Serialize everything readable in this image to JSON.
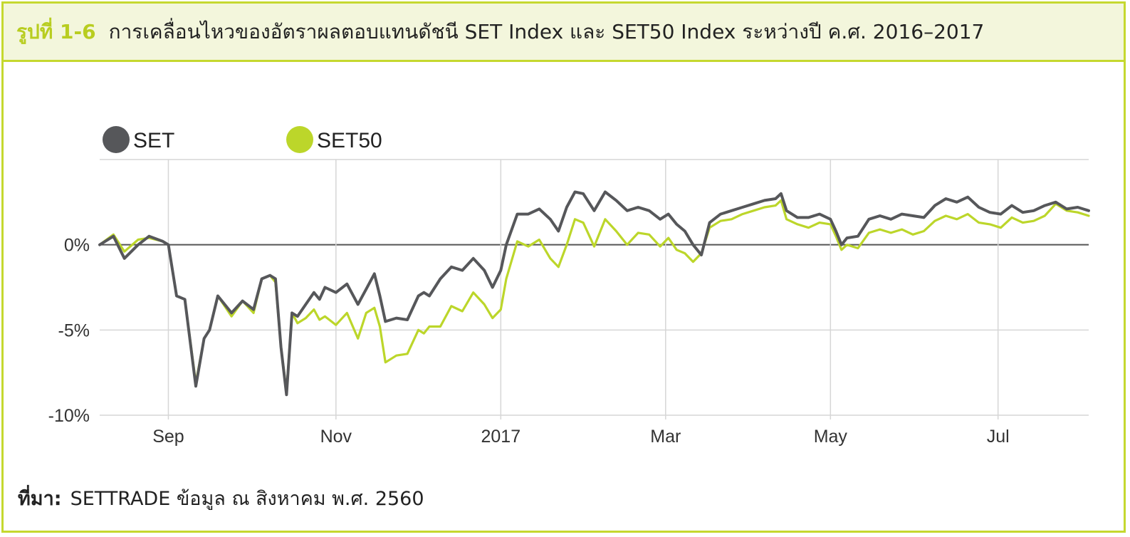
{
  "figure": {
    "number": "รูปที่ 1-6",
    "title": "การเคลื่อนไหวของอัตราผลตอบแทนดัชนี SET Index และ SET50 Index ระหว่างปี ค.ศ. 2016–2017"
  },
  "source": {
    "label": "ที่มา:",
    "text": "SETTRADE ข้อมูล ณ สิงหาคม พ.ศ. 2560"
  },
  "colors": {
    "set": "#56575a",
    "set50": "#bcd62a",
    "frame": "#c5d82f",
    "grid": "#d6d6d6",
    "zero": "#555555"
  },
  "chart_data": {
    "type": "line",
    "title": "",
    "xlabel": "",
    "ylabel": "",
    "ylim": [
      -10,
      5
    ],
    "xlim": [
      0,
      360
    ],
    "grid": true,
    "legend_position": "top-left",
    "yticks": [
      {
        "value": 0,
        "label": "0%"
      },
      {
        "value": -5,
        "label": "-5%"
      },
      {
        "value": -10,
        "label": "-10%"
      }
    ],
    "xticks": [
      {
        "value": 25,
        "label": "Sep"
      },
      {
        "value": 86,
        "label": "Nov"
      },
      {
        "value": 146,
        "label": "2017"
      },
      {
        "value": 206,
        "label": "Mar"
      },
      {
        "value": 266,
        "label": "May"
      },
      {
        "value": 327,
        "label": "Jul"
      }
    ],
    "series": [
      {
        "name": "SET",
        "x": [
          0,
          5,
          9,
          14,
          18,
          23,
          25,
          28,
          31,
          35,
          38,
          40,
          43,
          48,
          52,
          56,
          59,
          62,
          64,
          66,
          68,
          70,
          72,
          75,
          78,
          80,
          82,
          86,
          90,
          94,
          97,
          100,
          102,
          104,
          108,
          112,
          116,
          118,
          120,
          124,
          128,
          132,
          136,
          140,
          143,
          146,
          148,
          152,
          156,
          160,
          164,
          167,
          170,
          173,
          176,
          180,
          184,
          188,
          192,
          196,
          200,
          204,
          207,
          210,
          213,
          216,
          219,
          222,
          226,
          230,
          234,
          238,
          242,
          246,
          248,
          250,
          254,
          258,
          262,
          266,
          268,
          270,
          272,
          276,
          280,
          284,
          288,
          292,
          296,
          300,
          304,
          308,
          312,
          316,
          320,
          324,
          328,
          332,
          336,
          340,
          344,
          348,
          352,
          356,
          360
        ],
        "y": [
          0,
          0.5,
          -0.8,
          0,
          0.5,
          0.2,
          0,
          -3,
          -3.2,
          -8.3,
          -5.5,
          -5.0,
          -3.0,
          -4.0,
          -3.3,
          -3.8,
          -2.0,
          -1.8,
          -2.0,
          -6.0,
          -8.8,
          -4.0,
          -4.2,
          -3.5,
          -2.8,
          -3.2,
          -2.5,
          -2.8,
          -2.3,
          -3.5,
          -2.6,
          -1.7,
          -3.0,
          -4.5,
          -4.3,
          -4.4,
          -3.0,
          -2.8,
          -3.0,
          -2.0,
          -1.3,
          -1.5,
          -0.8,
          -1.5,
          -2.5,
          -1.5,
          0,
          1.8,
          1.8,
          2.1,
          1.5,
          0.8,
          2.2,
          3.1,
          3.0,
          2.0,
          3.1,
          2.6,
          2.0,
          2.2,
          2.0,
          1.5,
          1.8,
          1.2,
          0.8,
          0,
          -0.6,
          1.3,
          1.8,
          2.0,
          2.2,
          2.4,
          2.6,
          2.7,
          3.0,
          2.0,
          1.6,
          1.6,
          1.8,
          1.5,
          0.8,
          0,
          0.4,
          0.5,
          1.5,
          1.7,
          1.5,
          1.8,
          1.7,
          1.6,
          2.3,
          2.7,
          2.5,
          2.8,
          2.2,
          1.9,
          1.8,
          2.3,
          1.9,
          2.0,
          2.3,
          2.5,
          2.1,
          2.2,
          2.0
        ]
      },
      {
        "name": "SET50",
        "x": [
          0,
          5,
          9,
          14,
          18,
          23,
          25,
          28,
          31,
          35,
          38,
          40,
          43,
          48,
          52,
          56,
          59,
          62,
          64,
          66,
          68,
          70,
          72,
          75,
          78,
          80,
          82,
          86,
          90,
          94,
          97,
          100,
          102,
          104,
          108,
          112,
          116,
          118,
          120,
          124,
          128,
          132,
          136,
          140,
          143,
          146,
          148,
          152,
          156,
          160,
          164,
          167,
          170,
          173,
          176,
          180,
          184,
          188,
          192,
          196,
          200,
          204,
          207,
          210,
          213,
          216,
          219,
          222,
          226,
          230,
          234,
          238,
          242,
          246,
          248,
          250,
          254,
          258,
          262,
          266,
          268,
          270,
          272,
          276,
          280,
          284,
          288,
          292,
          296,
          300,
          304,
          308,
          312,
          316,
          320,
          324,
          328,
          332,
          336,
          340,
          344,
          348,
          352,
          356,
          360
        ],
        "y": [
          0,
          0.6,
          -0.4,
          0.3,
          0.4,
          0.2,
          0,
          -3,
          -3.2,
          -8.1,
          -5.5,
          -5.0,
          -3.0,
          -4.2,
          -3.3,
          -4.0,
          -2.0,
          -1.8,
          -2.2,
          -6.0,
          -8.6,
          -4.0,
          -4.6,
          -4.3,
          -3.8,
          -4.4,
          -4.2,
          -4.7,
          -4.0,
          -5.5,
          -4.0,
          -3.7,
          -4.8,
          -6.9,
          -6.5,
          -6.4,
          -5.0,
          -5.2,
          -4.8,
          -4.8,
          -3.6,
          -3.9,
          -2.8,
          -3.5,
          -4.3,
          -3.8,
          -2.0,
          0.2,
          -0.1,
          0.3,
          -0.8,
          -1.3,
          0,
          1.5,
          1.3,
          -0.1,
          1.5,
          0.8,
          0,
          0.7,
          0.6,
          -0.1,
          0.4,
          -0.3,
          -0.5,
          -1.0,
          -0.5,
          1.0,
          1.4,
          1.5,
          1.8,
          2.0,
          2.2,
          2.3,
          2.6,
          1.5,
          1.2,
          1.0,
          1.3,
          1.2,
          0.5,
          -0.3,
          0,
          -0.2,
          0.7,
          0.9,
          0.7,
          0.9,
          0.6,
          0.8,
          1.4,
          1.7,
          1.5,
          1.8,
          1.3,
          1.2,
          1.0,
          1.6,
          1.3,
          1.4,
          1.7,
          2.4,
          2.0,
          1.9,
          1.7
        ]
      }
    ]
  }
}
